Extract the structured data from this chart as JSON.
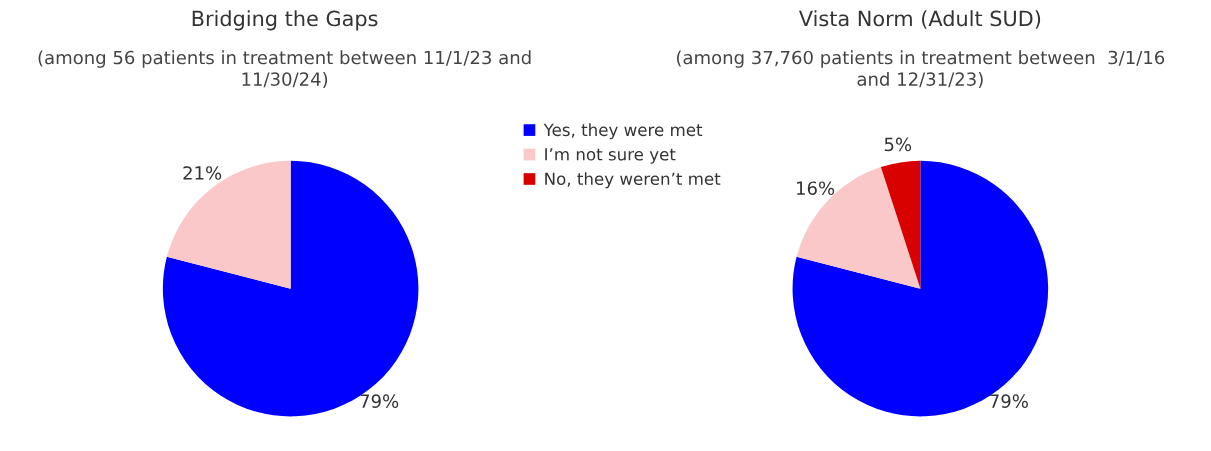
{
  "chart_data": [
    {
      "type": "pie",
      "title": "Bridging the Gaps",
      "subtitle": "(among 56 patients in treatment between 11/1/23 and\n11/30/24)",
      "categories": [
        "Yes, they were met",
        "I’m not sure yet",
        "No, they weren’t met"
      ],
      "values": [
        79,
        21,
        0
      ],
      "colors": [
        "#0000ff",
        "#fac8c8",
        "#d90000"
      ],
      "value_labels": [
        "79%",
        "21%",
        null
      ],
      "legend": "right"
    },
    {
      "type": "pie",
      "title": "Vista Norm (Adult SUD)",
      "subtitle": "(among 37,760 patients in treatment between  3/1/16\nand 12/31/23)",
      "categories": [
        null,
        null,
        null
      ],
      "values": [
        79,
        16,
        5
      ],
      "colors": [
        "#0000ff",
        "#fac8c8",
        "#d90000"
      ],
      "value_labels": [
        "79%",
        "16%",
        "5%"
      ]
    }
  ]
}
